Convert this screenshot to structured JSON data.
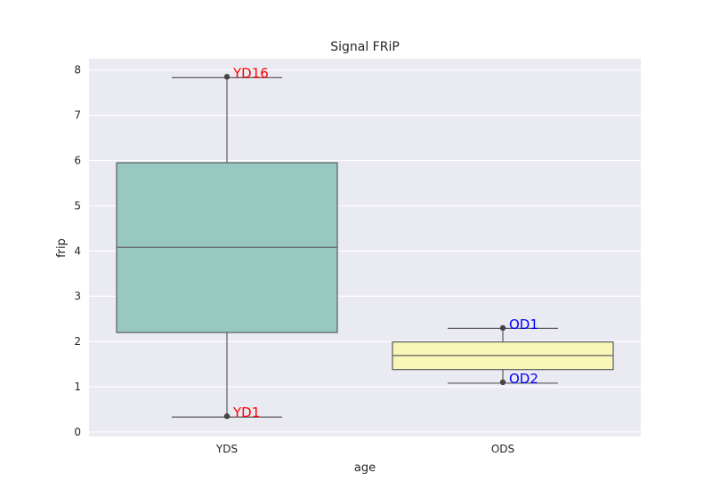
{
  "chart_data": {
    "type": "box",
    "title": "Signal FRiP",
    "xlabel": "age",
    "ylabel": "frip",
    "ylim": [
      -0.1,
      8.25
    ],
    "yticks": [
      0,
      1,
      2,
      3,
      4,
      5,
      6,
      7,
      8
    ],
    "grid": true,
    "categories": [
      "YDS",
      "ODS"
    ],
    "boxes": [
      {
        "category": "YDS",
        "color": "#97c9c0",
        "whisker_low": 0.33,
        "q1": 2.2,
        "median": 4.08,
        "q3": 5.95,
        "whisker_high": 7.83,
        "points": [
          {
            "label": "YD16",
            "value": 7.85
          },
          {
            "label": "YD1",
            "value": 0.35
          }
        ],
        "annotation_color": "#ff0000"
      },
      {
        "category": "ODS",
        "color": "#f8f7b8",
        "whisker_low": 1.08,
        "q1": 1.38,
        "median": 1.69,
        "q3": 1.99,
        "whisker_high": 2.29,
        "points": [
          {
            "label": "OD1",
            "value": 2.3
          },
          {
            "label": "OD2",
            "value": 1.1
          }
        ],
        "annotation_color": "#0000ff"
      }
    ]
  },
  "colors": {
    "plot_background": "#eaeaf2",
    "grid": "#ffffff",
    "box_edge": "#5d5d5d"
  }
}
